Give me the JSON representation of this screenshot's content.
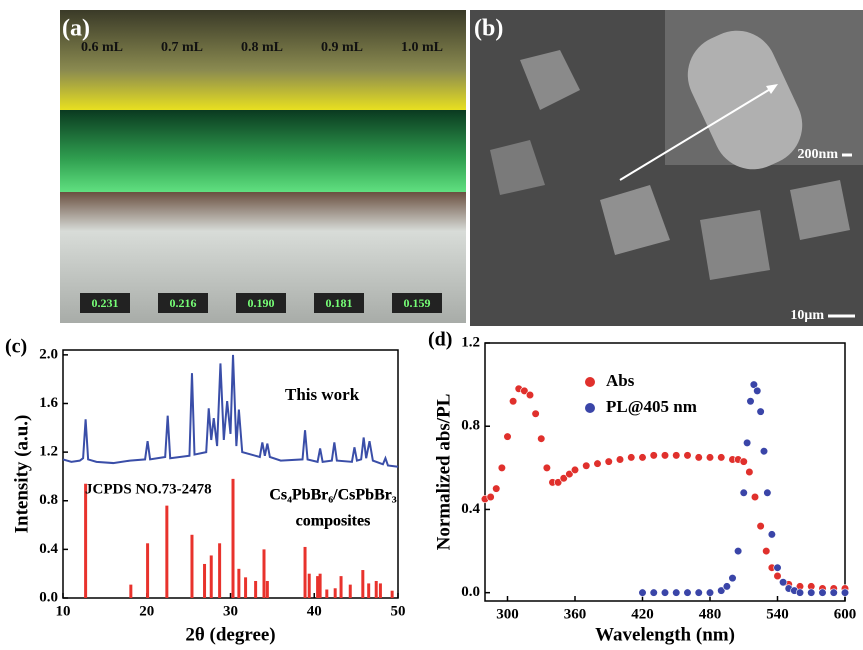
{
  "panels": [
    {
      "label": "(a)",
      "volumes": [
        "0.6 mL",
        "0.7 mL",
        "0.8 mL",
        "0.9 mL",
        "1.0 mL"
      ],
      "readings": [
        "0.231",
        "0.216",
        "0.190",
        "0.181",
        "0.159"
      ]
    },
    {
      "label": "(b)",
      "inset_scale": "200nm",
      "scale": "10μm"
    }
  ],
  "chart_data": [
    {
      "type": "line",
      "panel_label": "(c)",
      "xlabel": "2θ (degree)",
      "ylabel": "Intensity (a.u.)",
      "xlim": [
        10,
        50
      ],
      "xticks": [
        10,
        20,
        30,
        40,
        50
      ],
      "ylim": [
        0,
        2.04
      ],
      "yticks": [
        {
          "value": 0,
          "label": "0.0"
        },
        0.4,
        0.8,
        1.2,
        1.6,
        {
          "value": 2,
          "label": "2.0"
        }
      ],
      "annotation": [
        "Cs₄PbBr₆/CsPbBr₃",
        "composites"
      ],
      "series": [
        {
          "name": "This work",
          "color": "#3a4ea8",
          "style": "line",
          "x": [
            10,
            11,
            12,
            12.4,
            12.7,
            13,
            14,
            16,
            18,
            19.8,
            20.1,
            20.4,
            22.2,
            22.5,
            22.8,
            25.1,
            25.4,
            25.7,
            27.1,
            27.4,
            27.7,
            28.0,
            28.4,
            28.8,
            29.2,
            29.6,
            30.0,
            30.3,
            30.7,
            31.0,
            31.4,
            33.5,
            33.8,
            34.1,
            34.4,
            34.7,
            36,
            38.6,
            38.9,
            39.2,
            40.4,
            40.7,
            41,
            42.1,
            42.4,
            42.7,
            44.5,
            44.8,
            45.1,
            45.6,
            45.9,
            46.2,
            46.6,
            47,
            48.2,
            48.5,
            48.8,
            50
          ],
          "values": [
            1.14,
            1.12,
            1.13,
            1.15,
            1.47,
            1.14,
            1.12,
            1.11,
            1.13,
            1.14,
            1.29,
            1.14,
            1.16,
            1.5,
            1.15,
            1.17,
            1.85,
            1.18,
            1.2,
            1.56,
            1.3,
            1.48,
            1.25,
            1.93,
            1.3,
            1.62,
            1.35,
            2.0,
            1.25,
            1.55,
            1.2,
            1.16,
            1.28,
            1.17,
            1.27,
            1.16,
            1.13,
            1.14,
            1.38,
            1.14,
            1.12,
            1.23,
            1.12,
            1.13,
            1.28,
            1.13,
            1.12,
            1.24,
            1.13,
            1.14,
            1.32,
            1.15,
            1.29,
            1.13,
            1.1,
            1.15,
            1.09,
            1.08
          ]
        },
        {
          "name": "JCPDS NO.73-2478",
          "color": "#e8322c",
          "style": "stem",
          "x": [
            12.7,
            18.1,
            20.1,
            22.4,
            25.4,
            26.9,
            27.7,
            28.7,
            30.3,
            31.0,
            31.8,
            33.0,
            34.0,
            34.4,
            38.9,
            39.4,
            40.4,
            40.7,
            41.5,
            42.5,
            43.2,
            44.3,
            45.8,
            46.5,
            47.4,
            47.9,
            49.3
          ],
          "values": [
            0.94,
            0.11,
            0.45,
            0.76,
            0.52,
            0.28,
            0.35,
            0.45,
            0.98,
            0.24,
            0.17,
            0.14,
            0.4,
            0.14,
            0.42,
            0.2,
            0.18,
            0.2,
            0.07,
            0.08,
            0.18,
            0.11,
            0.23,
            0.12,
            0.14,
            0.12,
            0.06
          ]
        }
      ]
    },
    {
      "type": "scatter",
      "panel_label": "(d)",
      "xlabel": "Wavelength (nm)",
      "ylabel": "Normalized abs/PL",
      "xlim": [
        280,
        600
      ],
      "xticks": [
        300,
        360,
        420,
        480,
        540,
        600
      ],
      "ylim": [
        -0.04,
        1.2
      ],
      "yticks": [
        {
          "value": 0,
          "label": "0.0"
        },
        0.4,
        0.8,
        1.2
      ],
      "series": [
        {
          "name": "Abs",
          "color": "#e0302c",
          "x": [
            280,
            285,
            290,
            295,
            300,
            305,
            310,
            315,
            320,
            325,
            330,
            335,
            340,
            345,
            350,
            355,
            360,
            370,
            380,
            390,
            400,
            410,
            420,
            430,
            440,
            450,
            460,
            470,
            480,
            490,
            500,
            505,
            510,
            515,
            520,
            525,
            530,
            535,
            540,
            545,
            550,
            560,
            570,
            580,
            590,
            600
          ],
          "values": [
            0.45,
            0.46,
            0.5,
            0.6,
            0.75,
            0.92,
            0.98,
            0.97,
            0.95,
            0.86,
            0.74,
            0.6,
            0.53,
            0.53,
            0.55,
            0.57,
            0.59,
            0.61,
            0.62,
            0.63,
            0.64,
            0.65,
            0.65,
            0.66,
            0.66,
            0.66,
            0.66,
            0.65,
            0.65,
            0.65,
            0.64,
            0.64,
            0.63,
            0.58,
            0.46,
            0.32,
            0.2,
            0.12,
            0.08,
            0.05,
            0.04,
            0.03,
            0.03,
            0.02,
            0.02,
            0.02
          ]
        },
        {
          "name": "PL@405 nm",
          "color": "#3a45a8",
          "x": [
            420,
            430,
            440,
            450,
            460,
            470,
            480,
            490,
            495,
            500,
            505,
            510,
            513,
            516,
            519,
            522,
            525,
            528,
            531,
            535,
            540,
            545,
            550,
            555,
            560,
            570,
            580,
            590,
            600
          ],
          "values": [
            0,
            0,
            0,
            0,
            0,
            0,
            0,
            0.01,
            0.03,
            0.07,
            0.2,
            0.48,
            0.72,
            0.92,
            1.0,
            0.97,
            0.87,
            0.68,
            0.48,
            0.28,
            0.12,
            0.05,
            0.02,
            0.01,
            0,
            0,
            0,
            0,
            0
          ]
        }
      ]
    }
  ]
}
